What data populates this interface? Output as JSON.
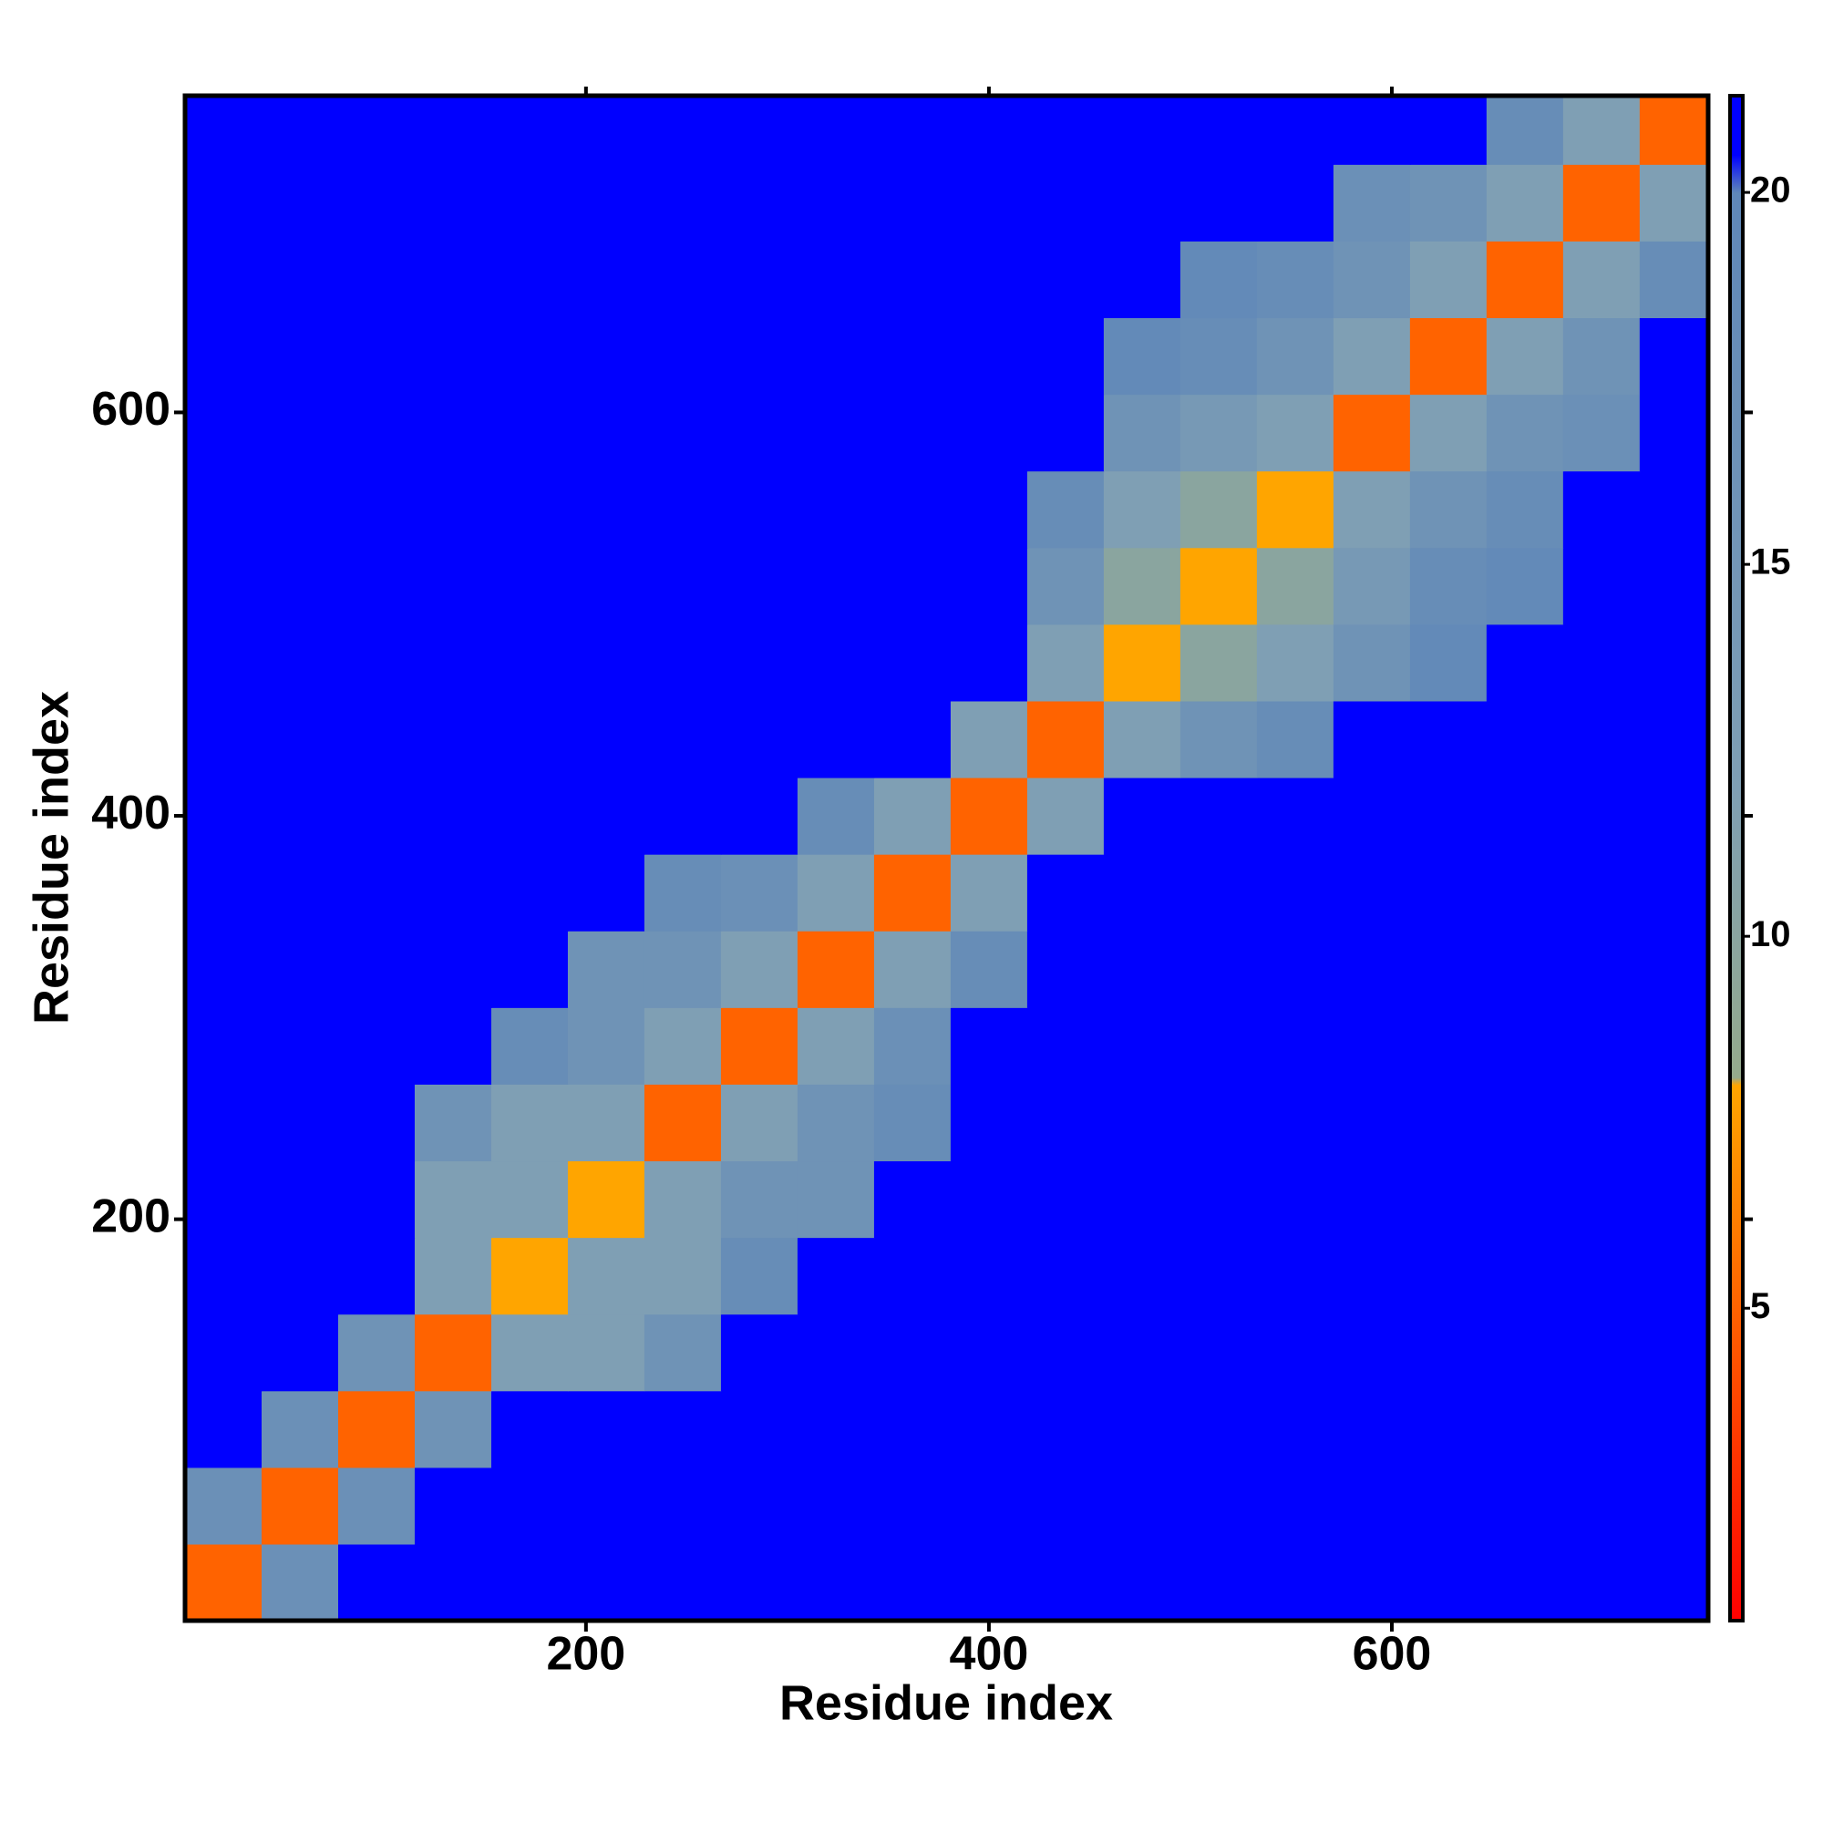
{
  "chart_data": {
    "type": "heatmap",
    "xlabel": "Residue index",
    "ylabel": "Residue index",
    "xlim": [
      1,
      757
    ],
    "ylim": [
      1,
      757
    ],
    "xticks": [
      200,
      400,
      600
    ],
    "yticks": [
      200,
      400,
      600
    ],
    "bins": [
      1,
      39,
      77,
      115,
      153,
      191,
      229,
      267,
      305,
      343,
      381,
      419,
      457,
      495,
      533,
      571,
      609,
      647,
      685,
      723,
      757
    ],
    "z": [
      [
        5,
        17,
        21,
        21,
        21,
        21,
        21,
        21,
        21,
        21,
        21,
        21,
        21,
        21,
        21,
        21,
        21,
        21,
        21,
        21
      ],
      [
        17,
        5,
        17,
        21,
        21,
        21,
        21,
        21,
        21,
        21,
        21,
        21,
        21,
        21,
        21,
        21,
        21,
        21,
        21,
        21
      ],
      [
        21,
        17,
        5,
        16,
        21,
        21,
        21,
        21,
        21,
        21,
        21,
        21,
        21,
        21,
        21,
        21,
        21,
        21,
        21,
        21
      ],
      [
        21,
        21,
        16,
        5,
        12,
        12,
        16,
        21,
        21,
        21,
        21,
        21,
        21,
        21,
        21,
        21,
        21,
        21,
        21,
        21
      ],
      [
        21,
        21,
        21,
        12,
        8,
        12,
        12,
        18,
        21,
        21,
        21,
        21,
        21,
        21,
        21,
        21,
        21,
        21,
        21,
        21
      ],
      [
        21,
        21,
        21,
        12,
        12,
        8,
        12,
        16,
        16,
        21,
        21,
        21,
        21,
        21,
        21,
        21,
        21,
        21,
        21,
        21
      ],
      [
        21,
        21,
        21,
        16,
        12,
        12,
        5,
        12,
        16,
        18,
        21,
        21,
        21,
        21,
        21,
        21,
        21,
        21,
        21,
        21
      ],
      [
        21,
        21,
        21,
        21,
        18,
        16,
        12,
        5,
        12,
        17,
        21,
        21,
        21,
        21,
        21,
        21,
        21,
        21,
        21,
        21
      ],
      [
        21,
        21,
        21,
        21,
        21,
        16,
        16,
        12,
        5,
        12,
        18,
        21,
        21,
        21,
        21,
        21,
        21,
        21,
        21,
        21
      ],
      [
        21,
        21,
        21,
        21,
        21,
        21,
        18,
        17,
        12,
        5,
        12,
        21,
        21,
        21,
        21,
        21,
        21,
        21,
        21,
        21
      ],
      [
        21,
        21,
        21,
        21,
        21,
        21,
        21,
        21,
        18,
        12,
        5,
        12,
        21,
        21,
        21,
        21,
        21,
        21,
        21,
        21
      ],
      [
        21,
        21,
        21,
        21,
        21,
        21,
        21,
        21,
        21,
        21,
        12,
        5,
        12,
        16,
        18,
        21,
        21,
        21,
        21,
        21
      ],
      [
        21,
        21,
        21,
        21,
        21,
        21,
        21,
        21,
        21,
        21,
        21,
        12,
        8,
        10,
        12,
        16,
        19,
        21,
        21,
        21
      ],
      [
        21,
        21,
        21,
        21,
        21,
        21,
        21,
        21,
        21,
        21,
        21,
        16,
        10,
        8,
        10,
        14,
        18,
        19,
        21,
        21
      ],
      [
        21,
        21,
        21,
        21,
        21,
        21,
        21,
        21,
        21,
        21,
        21,
        18,
        12,
        10,
        8,
        12,
        16,
        18,
        21,
        21
      ],
      [
        21,
        21,
        21,
        21,
        21,
        21,
        21,
        21,
        21,
        21,
        21,
        21,
        16,
        14,
        12,
        5,
        12,
        16,
        17,
        21
      ],
      [
        21,
        21,
        21,
        21,
        21,
        21,
        21,
        21,
        21,
        21,
        21,
        21,
        19,
        18,
        16,
        12,
        5,
        12,
        16,
        21
      ],
      [
        21,
        21,
        21,
        21,
        21,
        21,
        21,
        21,
        21,
        21,
        21,
        21,
        21,
        19,
        18,
        16,
        12,
        5,
        12,
        18
      ],
      [
        21,
        21,
        21,
        21,
        21,
        21,
        21,
        21,
        21,
        21,
        21,
        21,
        21,
        21,
        21,
        17,
        16,
        12,
        5,
        12
      ],
      [
        21,
        21,
        21,
        21,
        21,
        21,
        21,
        21,
        21,
        21,
        21,
        21,
        21,
        21,
        21,
        21,
        21,
        18,
        12,
        5
      ]
    ],
    "zlim": [
      0.8,
      21.3
    ],
    "zticks": [
      5,
      10,
      15,
      20
    ],
    "colorscale": [
      [
        0.8,
        "#ff0000"
      ],
      [
        6,
        "#ff7a00"
      ],
      [
        8,
        "#ffa500"
      ],
      [
        8.1,
        "#95aa8c"
      ],
      [
        12,
        "#7f9fb4"
      ],
      [
        20,
        "#5f87b8"
      ],
      [
        20.5,
        "#0000ff"
      ],
      [
        21.3,
        "#0000ff"
      ]
    ]
  }
}
